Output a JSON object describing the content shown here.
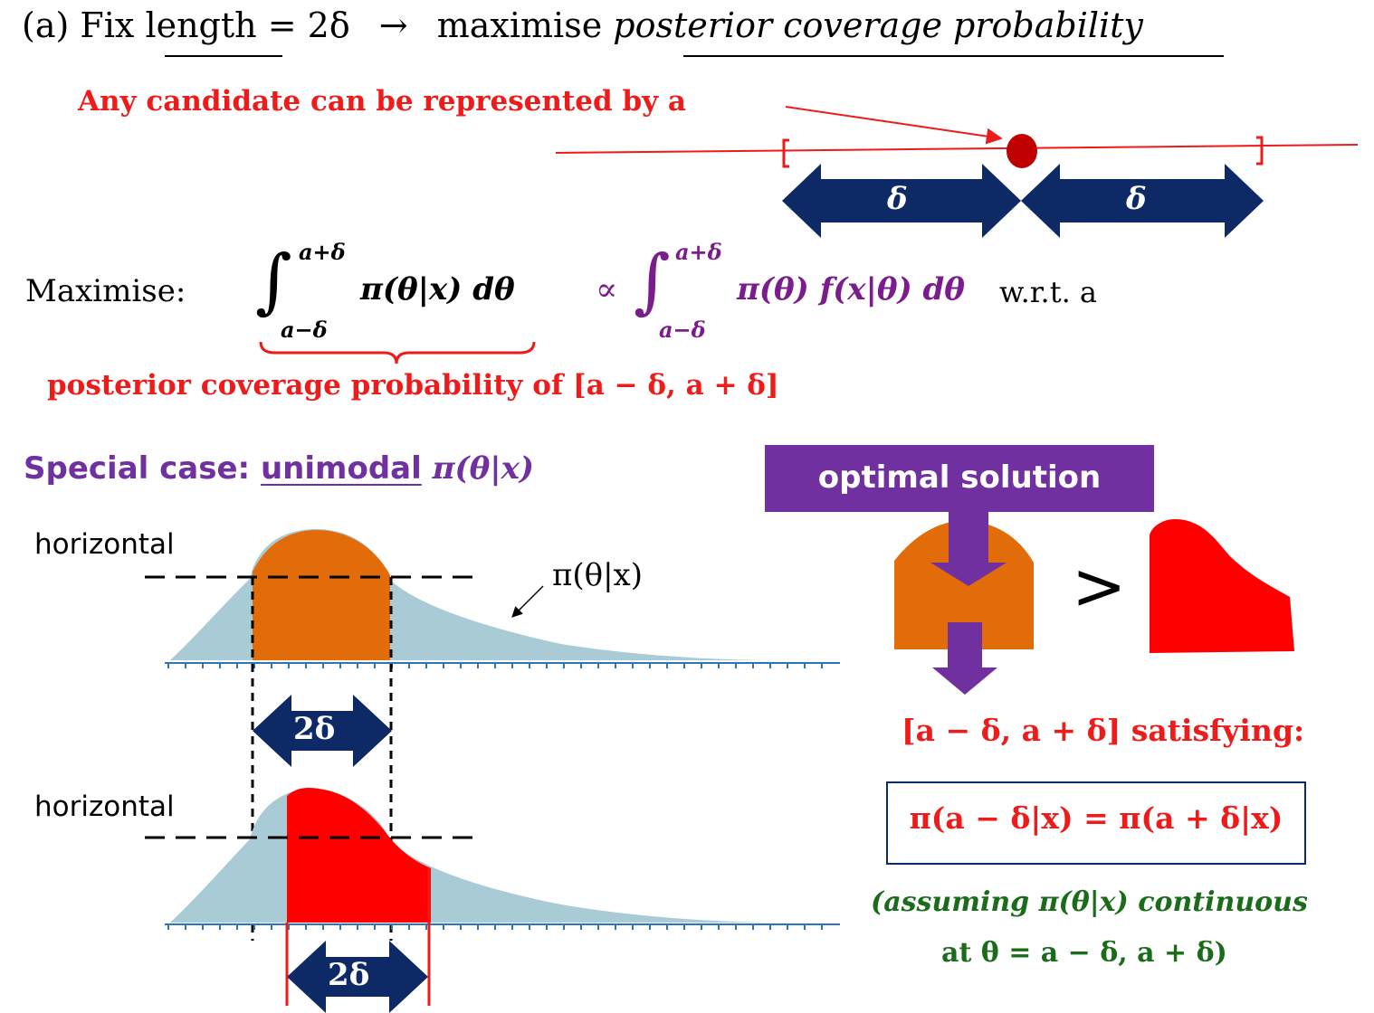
{
  "header": {
    "prefix": "(a) Fix",
    "length_word": "length",
    "eq": "= 2δ",
    "arrow": "→",
    "maximise_word": "maximise",
    "objective": "posterior coverage probability"
  },
  "candidate": {
    "note": "Any candidate can be represented by a",
    "delta_left": "δ",
    "delta_right": "δ"
  },
  "maximise": {
    "label": "Maximise:",
    "upper": "a+δ",
    "lower": "a−δ",
    "integrand1": "π(θ|x) dθ",
    "prop": "∝",
    "integrand2": "π(θ) f(x|θ) dθ",
    "wrt": "w.r.t. a",
    "brace_note": "posterior coverage probability of [a − δ, a + δ]"
  },
  "special_case": {
    "prefix": "Special case:",
    "unimodal": "unimodal",
    "dist": "π(θ|x)"
  },
  "plots": {
    "top_horizontal": "horizontal",
    "bottom_horizontal": "horizontal",
    "curve_label": "π(θ|x)",
    "width_top": "2δ",
    "width_bottom": "2δ"
  },
  "right": {
    "optimal_label": "optimal solution",
    "gt": ">",
    "satisfy": "[a − δ, a + δ] satisfying:",
    "equation": "π(a − δ|x) = π(a + δ|x)",
    "assume_line1": "(assuming π(θ|x) continuous",
    "assume_line2": "at θ = a − δ, a + δ)"
  },
  "colors": {
    "red": "#ee1b1b",
    "navy": "#0d2a66",
    "purple": "#7030a0",
    "orange": "#e36c0a",
    "lightblue": "#a9cbd5",
    "green": "#1a6b1a",
    "dark_red": "#c00000"
  }
}
